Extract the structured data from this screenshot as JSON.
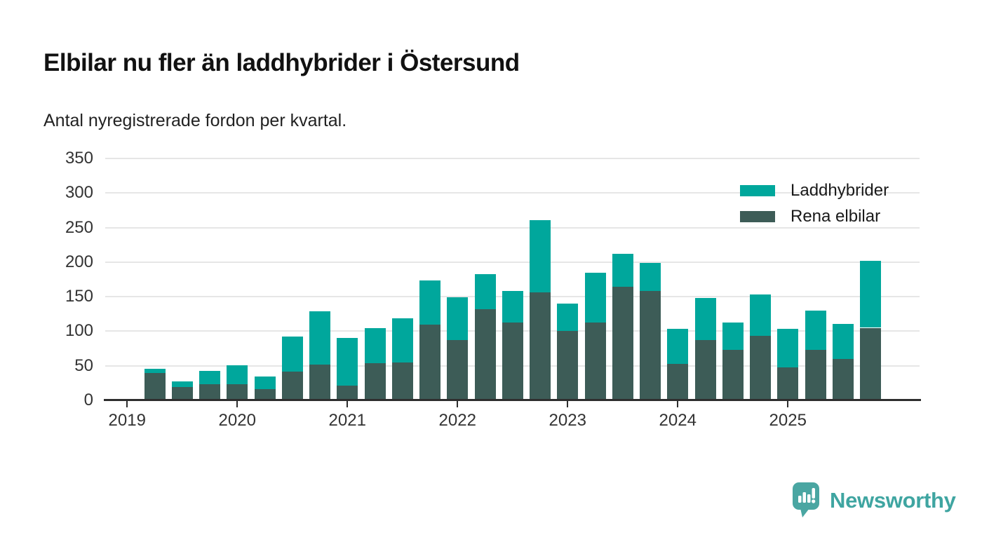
{
  "title": "Elbilar nu fler än laddhybrider i Östersund",
  "subtitle": "Antal nyregistrerade fordon per kvartal.",
  "legend": [
    {
      "label": "Laddhybrider",
      "color": "#00a79c"
    },
    {
      "label": "Rena elbilar",
      "color": "#3d5c57"
    }
  ],
  "brand": {
    "name": "Newsworthy",
    "icon": "newsworthy-bubble-barchart-icon",
    "text_color": "#3fa5a1",
    "badge_color": "#4aa6a2"
  },
  "colors": {
    "laddhybrider": "#00a79c",
    "rena_elbilar": "#3d5c57",
    "gridline": "#e6e6e6",
    "axis": "#2e2e2e",
    "text": "#1a1a1a"
  },
  "chart_data": {
    "type": "bar",
    "stacked": true,
    "title": "Elbilar nu fler än laddhybrider i Östersund",
    "subtitle": "Antal nyregistrerade fordon per kvartal.",
    "xlabel": "",
    "ylabel": "",
    "ylim": [
      0,
      350
    ],
    "yticks": [
      0,
      50,
      100,
      150,
      200,
      250,
      300,
      350
    ],
    "grid": true,
    "legend_position": "top-right",
    "x_year_ticks": [
      "2019",
      "2020",
      "2021",
      "2022",
      "2023",
      "2024",
      "2025"
    ],
    "x": [
      "2019 Q2",
      "2019 Q3",
      "2019 Q4",
      "2020 Q1",
      "2020 Q2",
      "2020 Q3",
      "2020 Q4",
      "2021 Q1",
      "2021 Q2",
      "2021 Q3",
      "2021 Q4",
      "2022 Q1",
      "2022 Q2",
      "2022 Q3",
      "2022 Q4",
      "2023 Q1",
      "2023 Q2",
      "2023 Q3",
      "2023 Q4",
      "2024 Q1",
      "2024 Q2",
      "2024 Q3",
      "2024 Q4",
      "2025 Q1",
      "2025 Q2",
      "2025 Q3",
      "2025 Q4"
    ],
    "series": [
      {
        "name": "Rena elbilar",
        "color": "#3d5c57",
        "values": [
          40,
          19,
          23,
          23,
          16,
          42,
          52,
          21,
          54,
          55,
          110,
          87,
          132,
          113,
          156,
          100,
          113,
          164,
          158,
          53,
          87,
          73,
          93,
          48,
          73,
          60,
          105
        ]
      },
      {
        "name": "Laddhybrider",
        "color": "#00a79c",
        "values": [
          6,
          8,
          20,
          28,
          18,
          50,
          77,
          69,
          51,
          64,
          63,
          62,
          51,
          45,
          105,
          40,
          72,
          48,
          41,
          50,
          61,
          40,
          60,
          55,
          57,
          51,
          97
        ]
      }
    ],
    "totals": [
      46,
      27,
      43,
      51,
      34,
      92,
      129,
      90,
      105,
      119,
      173,
      149,
      183,
      158,
      261,
      140,
      185,
      212,
      199,
      103,
      148,
      113,
      153,
      103,
      130,
      111,
      202
    ]
  }
}
